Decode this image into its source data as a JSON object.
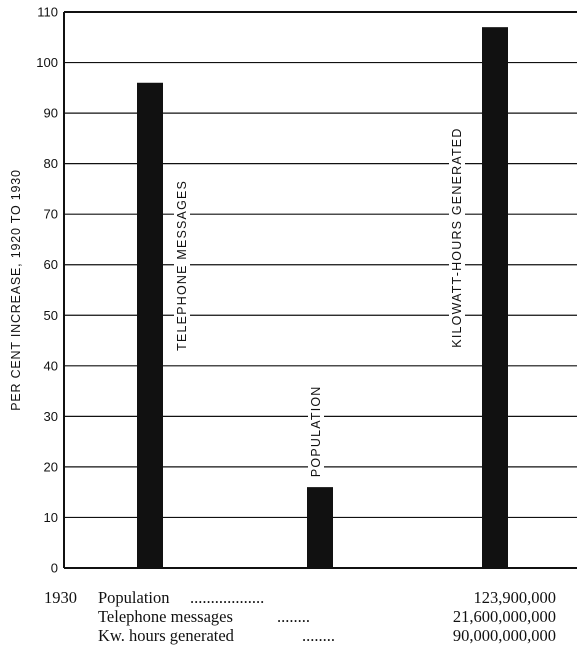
{
  "chart_data": {
    "type": "bar",
    "ylabel": "PER CENT INCREASE, 1920 TO 1930",
    "ylim": [
      0,
      110
    ],
    "yticks": [
      0,
      10,
      20,
      30,
      40,
      50,
      60,
      70,
      80,
      90,
      100,
      110
    ],
    "grid": true,
    "bars": [
      {
        "label": "TELEPHONE MESSAGES",
        "value": 96
      },
      {
        "label": "POPULATION",
        "value": 16
      },
      {
        "label": "KILOWATT-HOURS GENERATED",
        "value": 107
      }
    ],
    "colors": {
      "bar": "#111111",
      "grid": "#111111"
    }
  },
  "footnote": {
    "year": "1930",
    "rows": [
      {
        "name": "Population",
        "dots": "..................",
        "value": "123,900,000"
      },
      {
        "name": "Telephone messages",
        "dots": "........",
        "value": "21,600,000,000"
      },
      {
        "name": "Kw. hours generated",
        "dots": "........",
        "value": "90,000,000,000"
      }
    ]
  }
}
